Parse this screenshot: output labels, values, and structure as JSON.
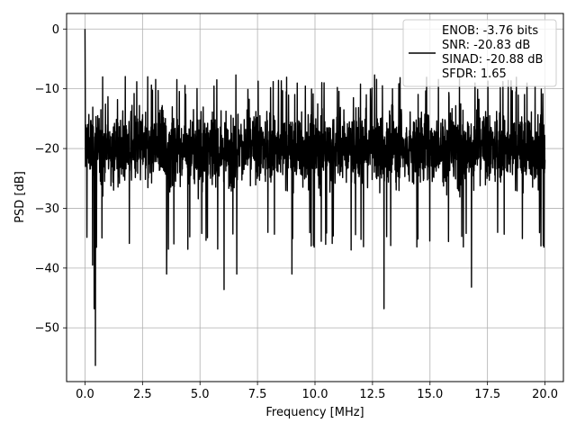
{
  "chart_data": {
    "type": "line",
    "title": "",
    "xlabel": "Frequency [MHz]",
    "ylabel": "PSD [dB]",
    "xlim": [
      -0.8,
      20.8
    ],
    "ylim": [
      -59,
      2.6
    ],
    "xticks": [
      0.0,
      2.5,
      5.0,
      7.5,
      10.0,
      12.5,
      15.0,
      17.5,
      20.0
    ],
    "xtick_labels": [
      "0.0",
      "2.5",
      "5.0",
      "7.5",
      "10.0",
      "12.5",
      "15.0",
      "17.5",
      "20.0"
    ],
    "yticks": [
      0,
      -10,
      -20,
      -30,
      -40,
      -50
    ],
    "ytick_labels": [
      "0",
      "−10",
      "−20",
      "−30",
      "−40",
      "−50"
    ],
    "grid": true,
    "legend_position": "top-right",
    "series": [
      {
        "name": "ENOB: -3.76 bits\nSNR: -20.83 dB\nSINAD: -20.88 dB\nSFDR: 1.65",
        "color": "#000000",
        "description": "noise floor spectrum",
        "peak": {
          "x": 0.0,
          "y": 0.0
        },
        "noise_floor_mean": -20,
        "typical_range": [
          -30,
          -10
        ],
        "max_spur": -7.6,
        "min_dips": [
          {
            "x": 0.45,
            "y": -56.3
          },
          {
            "x": 0.4,
            "y": -46.8
          },
          {
            "x": 0.33,
            "y": -39.5
          },
          {
            "x": 3.55,
            "y": -41.0
          },
          {
            "x": 6.05,
            "y": -43.6
          },
          {
            "x": 6.6,
            "y": -41.0
          },
          {
            "x": 9.0,
            "y": -41.0
          },
          {
            "x": 13.0,
            "y": -46.8
          },
          {
            "x": 16.8,
            "y": -43.2
          }
        ]
      }
    ]
  },
  "legend": {
    "lines": [
      "ENOB: -3.76 bits",
      "SNR: -20.83 dB",
      "SINAD: -20.88 dB",
      "SFDR: 1.65"
    ]
  },
  "colors": {
    "line": "#000000",
    "grid": "#b0b0b0",
    "axes": "#000000",
    "legend_border": "#cccccc"
  }
}
